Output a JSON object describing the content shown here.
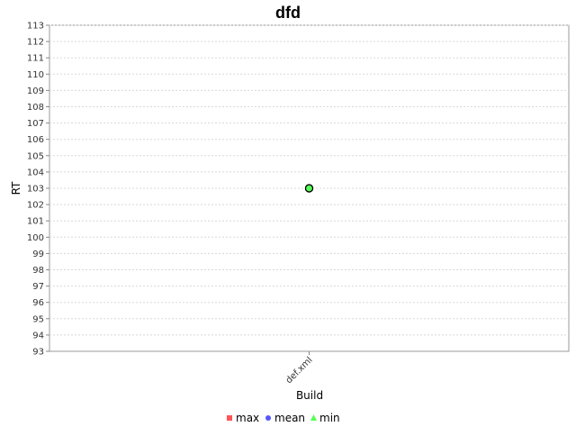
{
  "chart_data": {
    "type": "line",
    "title": "dfd",
    "xlabel": "Build",
    "ylabel": "RT",
    "categories": [
      "def.xml"
    ],
    "ylim": [
      93,
      113
    ],
    "yticks": [
      93,
      94,
      95,
      96,
      97,
      98,
      99,
      100,
      101,
      102,
      103,
      104,
      105,
      106,
      107,
      108,
      109,
      110,
      111,
      112,
      113
    ],
    "grid": true,
    "legend_placement": "bottom-center",
    "series": [
      {
        "name": "max",
        "values": [
          103
        ],
        "color": "#ff5555",
        "marker": "square"
      },
      {
        "name": "mean",
        "values": [
          103
        ],
        "color": "#5555ff",
        "marker": "circle"
      },
      {
        "name": "min",
        "values": [
          103
        ],
        "color": "#55ff55",
        "marker": "triangle"
      }
    ],
    "highlight_point": {
      "category": "def.xml",
      "value": 103,
      "color": "#55ff55"
    }
  }
}
